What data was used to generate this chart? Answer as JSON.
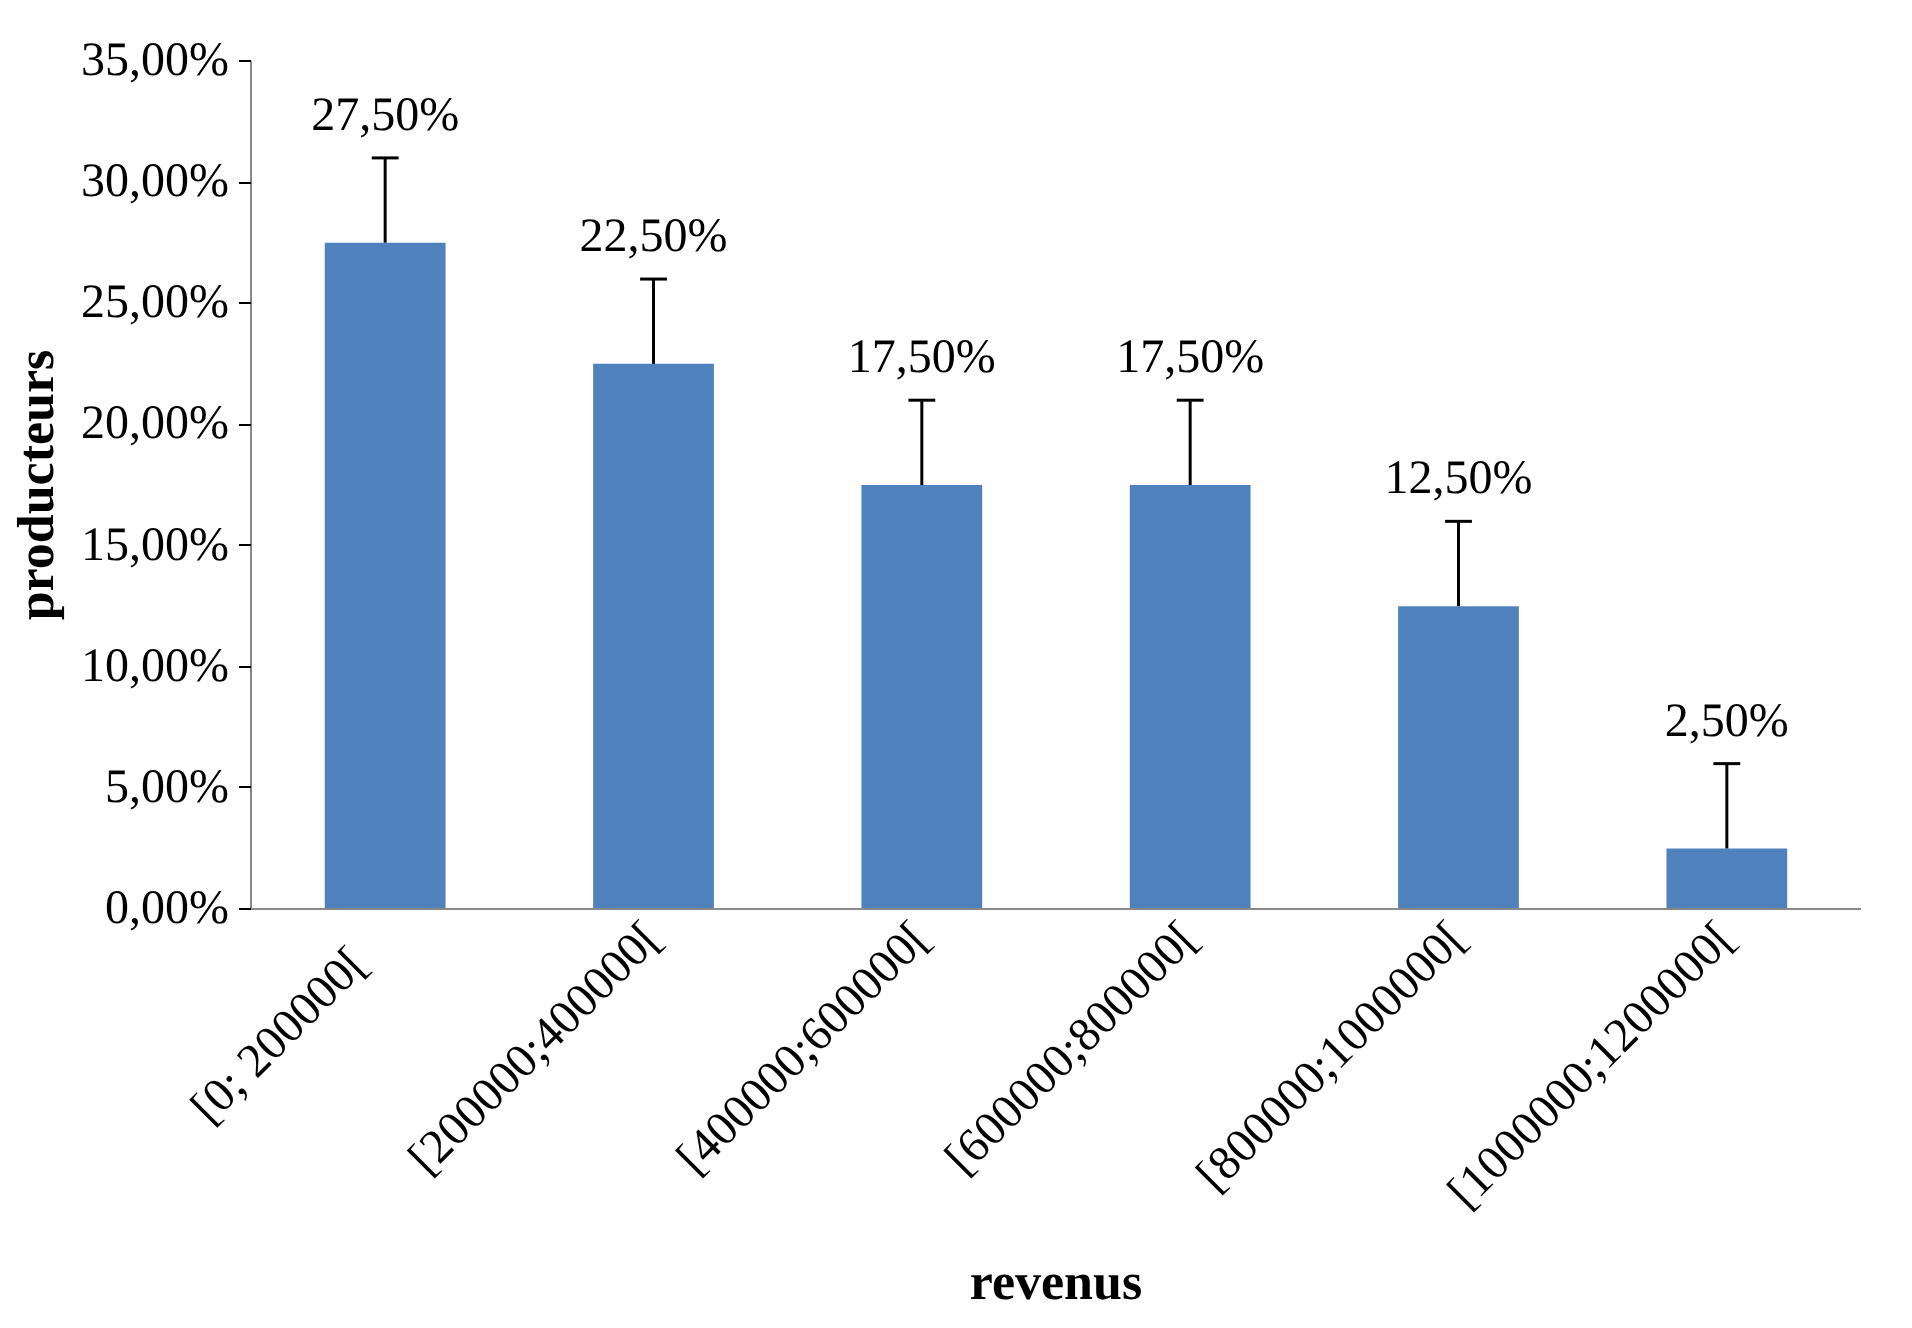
{
  "chart_data": {
    "type": "bar",
    "xlabel": "revenus",
    "ylabel": "producteurs",
    "categories": [
      "[0;    200000[",
      "[200000;400000[",
      "[400000;600000[",
      "[600000;800000[",
      "[800000;1000000[",
      "[1000000;1200000["
    ],
    "values": [
      27.5,
      22.5,
      17.5,
      17.5,
      12.5,
      2.5
    ],
    "color": "#4f81bd",
    "errors": [
      [
        27.5,
        31
      ],
      [
        22.5,
        26
      ],
      [
        17.5,
        21
      ],
      [
        17.5,
        21
      ],
      [
        12.5,
        16
      ],
      [
        2.5,
        6
      ]
    ],
    "value_labels": [
      "27,50%",
      "22,50%",
      "17,50%",
      "17,50%",
      "12,50%",
      "2,50%"
    ],
    "ylim": [
      0,
      35
    ],
    "yticks": [
      {
        "value": 0,
        "label": "0,00%"
      },
      {
        "value": 5,
        "label": "5,00%"
      },
      {
        "value": 10,
        "label": "10,00%"
      },
      {
        "value": 15,
        "label": "15,00%"
      },
      {
        "value": 20,
        "label": "20,00%"
      },
      {
        "value": 25,
        "label": "25,00%"
      },
      {
        "value": 30,
        "label": "30,00%"
      },
      {
        "value": 35,
        "label": "35,00%"
      }
    ],
    "grid": false
  }
}
